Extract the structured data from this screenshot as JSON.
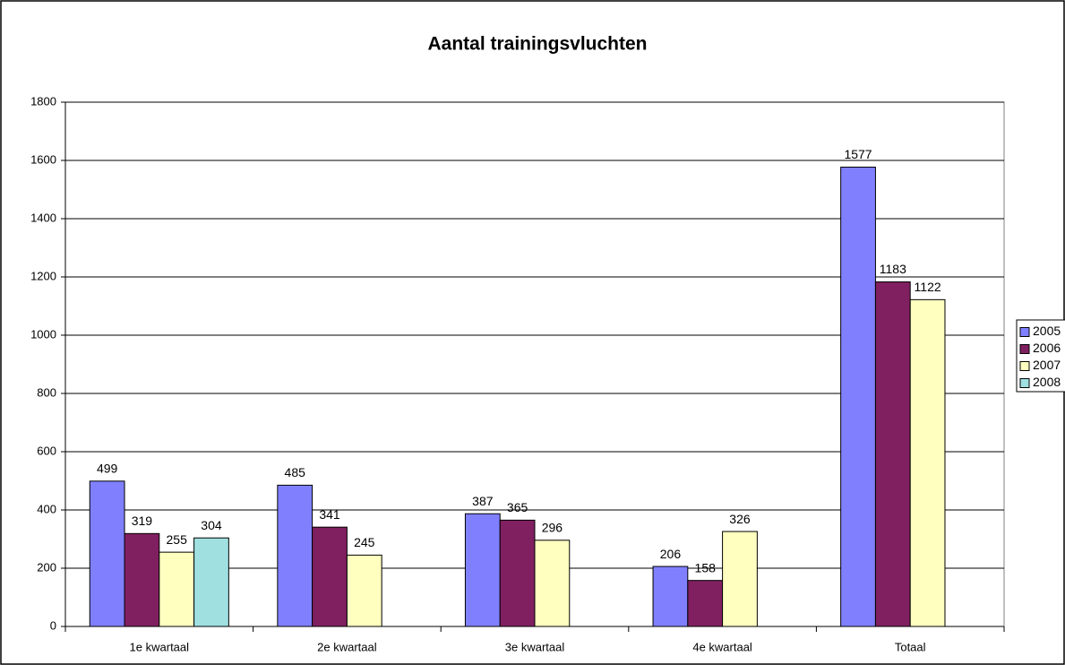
{
  "chart_data": {
    "type": "bar",
    "title": "Aantal trainingsvluchten",
    "categories": [
      "1e kwartaal",
      "2e kwartaal",
      "3e kwartaal",
      "4e kwartaal",
      "Totaal"
    ],
    "series": [
      {
        "name": "2005",
        "color": "#8080ff",
        "values": [
          499,
          485,
          387,
          206,
          1577
        ]
      },
      {
        "name": "2006",
        "color": "#802060",
        "values": [
          319,
          341,
          365,
          158,
          1183
        ]
      },
      {
        "name": "2007",
        "color": "#ffffc0",
        "values": [
          255,
          245,
          296,
          326,
          1122
        ]
      },
      {
        "name": "2008",
        "color": "#a0e0e0",
        "values": [
          304,
          null,
          null,
          null,
          null
        ]
      }
    ],
    "ylim": [
      0,
      1800
    ],
    "yticks": [
      0,
      200,
      400,
      600,
      800,
      1000,
      1200,
      1400,
      1600,
      1800
    ],
    "grid": true,
    "legend": "right"
  }
}
